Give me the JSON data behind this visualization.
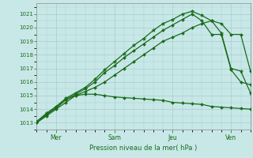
{
  "background_color": "#c8e8e8",
  "grid_color": "#aacccc",
  "line_color": "#1a6b1a",
  "title": "Pression niveau de la mer( hPa )",
  "ylim": [
    1012.5,
    1021.8
  ],
  "yticks": [
    1013,
    1014,
    1015,
    1016,
    1017,
    1018,
    1019,
    1020,
    1021
  ],
  "xtick_positions": [
    1,
    4,
    7,
    10
  ],
  "xtick_labels": [
    "Mer",
    "Sam",
    "Jeu",
    "Ven"
  ],
  "xlim": [
    0,
    11
  ],
  "series": [
    {
      "x": [
        0,
        0.5,
        1,
        1.5,
        2,
        2.5,
        3,
        3.5,
        4,
        4.5,
        5,
        5.5,
        6,
        6.5,
        7,
        7.5,
        8,
        8.5,
        9,
        9.5,
        10,
        10.5,
        11
      ],
      "y": [
        1013.0,
        1013.6,
        1014.1,
        1014.7,
        1015.0,
        1015.1,
        1015.1,
        1015.0,
        1014.9,
        1014.85,
        1014.8,
        1014.75,
        1014.7,
        1014.65,
        1014.5,
        1014.45,
        1014.4,
        1014.35,
        1014.2,
        1014.15,
        1014.1,
        1014.05,
        1014.0
      ],
      "marker": "D",
      "markersize": 2.0,
      "linewidth": 0.9
    },
    {
      "x": [
        0,
        0.5,
        1,
        1.5,
        2,
        2.5,
        3,
        3.5,
        4,
        4.5,
        5,
        5.5,
        6,
        6.5,
        7,
        7.5,
        8,
        8.5,
        9,
        9.5,
        10,
        10.5,
        11
      ],
      "y": [
        1013.0,
        1013.5,
        1014.0,
        1014.5,
        1015.0,
        1015.3,
        1015.6,
        1016.0,
        1016.5,
        1017.0,
        1017.5,
        1018.0,
        1018.5,
        1019.0,
        1019.3,
        1019.6,
        1020.0,
        1020.3,
        1020.5,
        1020.3,
        1019.5,
        1019.5,
        1016.8
      ],
      "marker": "D",
      "markersize": 2.0,
      "linewidth": 0.9
    },
    {
      "x": [
        0,
        0.5,
        1,
        1.5,
        2,
        2.5,
        3,
        3.5,
        4,
        4.5,
        5,
        5.5,
        6,
        6.5,
        7,
        7.5,
        8,
        8.5,
        9,
        9.5,
        10,
        10.5,
        11
      ],
      "y": [
        1013.0,
        1013.6,
        1014.1,
        1014.7,
        1015.1,
        1015.5,
        1016.0,
        1016.7,
        1017.2,
        1017.8,
        1018.3,
        1018.8,
        1019.3,
        1019.8,
        1020.2,
        1020.6,
        1021.0,
        1020.5,
        1019.5,
        1019.5,
        1016.9,
        1016.0,
        1015.8
      ],
      "marker": "D",
      "markersize": 2.0,
      "linewidth": 0.9
    },
    {
      "x": [
        0,
        0.5,
        1,
        1.5,
        2,
        2.5,
        3,
        3.5,
        4,
        4.5,
        5,
        5.5,
        6,
        6.5,
        7,
        7.5,
        8,
        8.5,
        9,
        9.5,
        10,
        10.5,
        11
      ],
      "y": [
        1013.1,
        1013.7,
        1014.2,
        1014.8,
        1015.2,
        1015.6,
        1016.2,
        1016.9,
        1017.5,
        1018.1,
        1018.7,
        1019.2,
        1019.8,
        1020.3,
        1020.6,
        1021.0,
        1021.2,
        1020.9,
        1020.5,
        1019.6,
        1017.0,
        1016.8,
        1015.2
      ],
      "marker": "*",
      "markersize": 3.5,
      "linewidth": 0.9
    }
  ]
}
